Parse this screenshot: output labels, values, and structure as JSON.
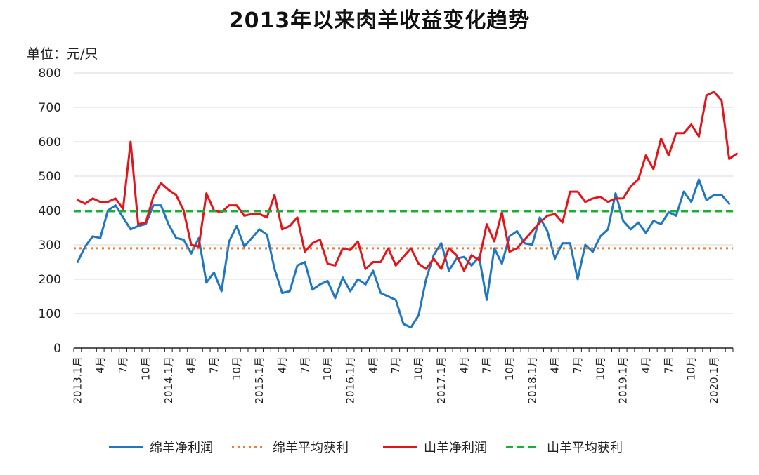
{
  "chart_data": {
    "type": "line",
    "title": "2013年以来肉羊收益变化趋势",
    "unit_label": "单位：元/只",
    "ylim": [
      0,
      800
    ],
    "yticks": [
      0,
      100,
      200,
      300,
      400,
      500,
      600,
      700,
      800
    ],
    "grid": true,
    "legend_position": "bottom",
    "x_labels": [
      "2013.1月",
      "4月",
      "7月",
      "10月",
      "2014.1月",
      "4月",
      "7月",
      "10月",
      "2015.1月",
      "4月",
      "7月",
      "10月",
      "2016.1月",
      "4月",
      "7月",
      "10月",
      "2017.1月",
      "4月",
      "7月",
      "10月",
      "2018.1月",
      "4月",
      "7月",
      "10月",
      "2019.1月",
      "4月",
      "7月",
      "10月",
      "2020.1月"
    ],
    "x_label_months": [
      0,
      3,
      6,
      9,
      12,
      15,
      18,
      21,
      24,
      27,
      30,
      33,
      36,
      39,
      42,
      45,
      48,
      51,
      54,
      57,
      60,
      63,
      66,
      69,
      72,
      75,
      78,
      81,
      84
    ],
    "series": [
      {
        "name": "绵羊净利润",
        "color": "#1f77c0",
        "style": "solid",
        "values": [
          250,
          295,
          325,
          320,
          400,
          415,
          380,
          345,
          355,
          360,
          415,
          415,
          360,
          320,
          315,
          275,
          320,
          190,
          220,
          165,
          310,
          355,
          295,
          320,
          345,
          330,
          230,
          160,
          165,
          240,
          250,
          170,
          185,
          195,
          145,
          205,
          165,
          200,
          185,
          225,
          160,
          150,
          140,
          70,
          60,
          95,
          200,
          270,
          305,
          225,
          260,
          265,
          240,
          265,
          140,
          290,
          245,
          325,
          340,
          305,
          300,
          380,
          340,
          260,
          305,
          305,
          200,
          300,
          280,
          325,
          345,
          450,
          370,
          345,
          365,
          335,
          370,
          360,
          395,
          385,
          455,
          425,
          490,
          430,
          445,
          445,
          420
        ]
      },
      {
        "name": "绵羊平均获利",
        "color": "#ed7d31",
        "style": "dotted",
        "values": [
          290,
          290
        ]
      },
      {
        "name": "山羊净利润",
        "color": "#e3151a",
        "style": "solid",
        "values": [
          430,
          420,
          435,
          425,
          425,
          435,
          405,
          600,
          360,
          365,
          440,
          480,
          460,
          445,
          400,
          300,
          295,
          450,
          400,
          395,
          415,
          415,
          385,
          390,
          390,
          380,
          445,
          345,
          355,
          380,
          280,
          305,
          315,
          245,
          240,
          290,
          285,
          310,
          230,
          250,
          250,
          290,
          240,
          265,
          290,
          245,
          230,
          260,
          230,
          290,
          270,
          225,
          270,
          255,
          360,
          310,
          395,
          280,
          290,
          315,
          340,
          365,
          385,
          390,
          365,
          455,
          455,
          425,
          435,
          440,
          425,
          435,
          435,
          470,
          490,
          560,
          520,
          610,
          560,
          625,
          625,
          650,
          615,
          735,
          745,
          720,
          550,
          565
        ]
      },
      {
        "name": "山羊平均获利",
        "color": "#1aaf3a",
        "style": "dashed",
        "values": [
          398,
          398
        ]
      }
    ]
  }
}
